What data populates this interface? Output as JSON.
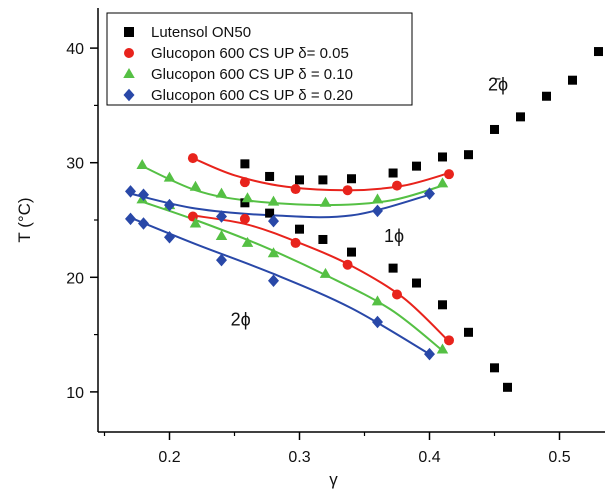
{
  "chart_data": {
    "type": "scatter",
    "xlabel": "γ",
    "ylabel": "T (°C)",
    "xlim": [
      0.145,
      0.535
    ],
    "ylim": [
      6.5,
      43.5
    ],
    "x_ticks": [
      0.2,
      0.3,
      0.4,
      0.5
    ],
    "x_tick_labels": [
      "0.2",
      "0.3",
      "0.4",
      "0.5"
    ],
    "y_ticks": [
      10,
      20,
      30,
      40
    ],
    "y_tick_labels": [
      "10",
      "20",
      "30",
      "40"
    ],
    "legend": {
      "placement": "top-left",
      "boxed": true
    },
    "series": [
      {
        "name": "Lutensol ON50",
        "marker": "square",
        "color": "#000000",
        "points": [
          [
            0.258,
            29.9
          ],
          [
            0.258,
            26.5
          ],
          [
            0.277,
            28.8
          ],
          [
            0.277,
            25.6
          ],
          [
            0.3,
            28.5
          ],
          [
            0.3,
            24.2
          ],
          [
            0.318,
            28.5
          ],
          [
            0.318,
            23.3
          ],
          [
            0.34,
            28.6
          ],
          [
            0.34,
            22.2
          ],
          [
            0.372,
            29.1
          ],
          [
            0.372,
            20.8
          ],
          [
            0.39,
            29.7
          ],
          [
            0.39,
            19.5
          ],
          [
            0.41,
            30.5
          ],
          [
            0.41,
            17.6
          ],
          [
            0.43,
            30.7
          ],
          [
            0.43,
            15.2
          ],
          [
            0.45,
            32.9
          ],
          [
            0.45,
            12.1
          ],
          [
            0.46,
            10.4
          ],
          [
            0.47,
            34.0
          ],
          [
            0.49,
            35.8
          ],
          [
            0.51,
            37.2
          ],
          [
            0.53,
            39.7
          ]
        ]
      },
      {
        "name": "Glucopon 600 CS UP δ= 0.05",
        "marker": "circle",
        "color": "#e8231c",
        "points": [
          [
            0.218,
            30.4
          ],
          [
            0.218,
            25.3
          ],
          [
            0.258,
            28.3
          ],
          [
            0.258,
            25.1
          ],
          [
            0.297,
            27.7
          ],
          [
            0.297,
            23.0
          ],
          [
            0.337,
            27.6
          ],
          [
            0.337,
            21.1
          ],
          [
            0.375,
            28.0
          ],
          [
            0.375,
            18.5
          ],
          [
            0.415,
            29.0
          ],
          [
            0.415,
            14.5
          ]
        ],
        "fit_upper": [
          [
            0.218,
            30.4
          ],
          [
            0.25,
            28.9
          ],
          [
            0.29,
            27.9
          ],
          [
            0.34,
            27.6
          ],
          [
            0.38,
            28.0
          ],
          [
            0.415,
            29.1
          ]
        ],
        "fit_lower": [
          [
            0.218,
            25.4
          ],
          [
            0.26,
            24.6
          ],
          [
            0.3,
            23.0
          ],
          [
            0.34,
            21.0
          ],
          [
            0.38,
            18.2
          ],
          [
            0.415,
            14.4
          ]
        ]
      },
      {
        "name": "Glucopon 600 CS UP δ = 0.10",
        "marker": "triangle",
        "color": "#55c044",
        "points": [
          [
            0.179,
            29.8
          ],
          [
            0.179,
            26.8
          ],
          [
            0.2,
            28.7
          ],
          [
            0.2,
            26.3
          ],
          [
            0.22,
            27.9
          ],
          [
            0.22,
            24.7
          ],
          [
            0.24,
            27.3
          ],
          [
            0.24,
            23.6
          ],
          [
            0.26,
            26.9
          ],
          [
            0.26,
            23.0
          ],
          [
            0.28,
            26.6
          ],
          [
            0.28,
            22.1
          ],
          [
            0.32,
            26.5
          ],
          [
            0.32,
            20.3
          ],
          [
            0.36,
            26.8
          ],
          [
            0.36,
            17.9
          ],
          [
            0.41,
            28.2
          ],
          [
            0.41,
            13.7
          ]
        ],
        "fit_upper": [
          [
            0.179,
            29.7
          ],
          [
            0.22,
            27.6
          ],
          [
            0.26,
            26.7
          ],
          [
            0.32,
            26.3
          ],
          [
            0.37,
            26.7
          ],
          [
            0.41,
            28.0
          ]
        ],
        "fit_lower": [
          [
            0.179,
            26.6
          ],
          [
            0.22,
            25.0
          ],
          [
            0.27,
            22.8
          ],
          [
            0.32,
            20.2
          ],
          [
            0.37,
            17.2
          ],
          [
            0.41,
            13.6
          ]
        ]
      },
      {
        "name": "Glucopon 600 CS UP δ = 0.20",
        "marker": "diamond",
        "color": "#2948a8",
        "points": [
          [
            0.17,
            27.5
          ],
          [
            0.17,
            25.1
          ],
          [
            0.18,
            27.2
          ],
          [
            0.18,
            24.7
          ],
          [
            0.2,
            26.3
          ],
          [
            0.2,
            23.5
          ],
          [
            0.24,
            25.3
          ],
          [
            0.24,
            21.5
          ],
          [
            0.28,
            24.9
          ],
          [
            0.28,
            19.7
          ],
          [
            0.36,
            25.8
          ],
          [
            0.36,
            16.1
          ],
          [
            0.4,
            27.3
          ],
          [
            0.4,
            13.3
          ]
        ],
        "fit_upper": [
          [
            0.17,
            27.3
          ],
          [
            0.22,
            26.0
          ],
          [
            0.28,
            25.4
          ],
          [
            0.34,
            25.4
          ],
          [
            0.4,
            27.2
          ]
        ],
        "fit_lower": [
          [
            0.17,
            25.2
          ],
          [
            0.22,
            22.9
          ],
          [
            0.28,
            20.3
          ],
          [
            0.34,
            17.3
          ],
          [
            0.4,
            13.3
          ]
        ]
      }
    ],
    "annotations": [
      {
        "text": "2̄ϕ",
        "x": 0.445,
        "y": 36.3
      },
      {
        "text": "1ϕ",
        "x": 0.365,
        "y": 23.1
      },
      {
        "text": "2ϕ",
        "x": 0.247,
        "y": 15.8
      }
    ]
  }
}
